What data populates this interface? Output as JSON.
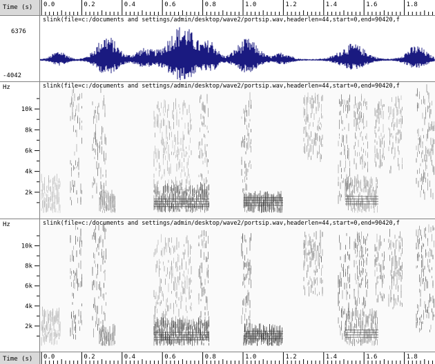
{
  "time_axis": {
    "label": "Time (s)",
    "ticks": [
      "0.0",
      "0.2",
      "0.4",
      "0.6",
      "0.8",
      "1.0",
      "1.2",
      "1.4",
      "1.6",
      "1.8"
    ]
  },
  "waveform": {
    "caption": "slink(file=c:/documents and settings/admin/desktop/wave2/portsip.wav,headerlen=44,start=0,end=90420,f",
    "y_max": "6376",
    "y_min": "-4042",
    "color": "#1a1a80"
  },
  "spectrogram1": {
    "caption": "slink(file=c:/documents and settings/admin/desktop/wave2/portsip.wav,headerlen=44,start=0,end=90420,f",
    "unit": "Hz",
    "ticks": [
      "10k",
      "8k",
      "6k",
      "4k",
      "2k"
    ]
  },
  "spectrogram2": {
    "caption": "slink(file=c:/documents and settings/admin/desktop/wave2/portsip.wav,headerlen=44,start=0,end=90420,f",
    "unit": "Hz",
    "ticks": [
      "10k",
      "8k",
      "6k",
      "4k",
      "2k"
    ]
  }
}
